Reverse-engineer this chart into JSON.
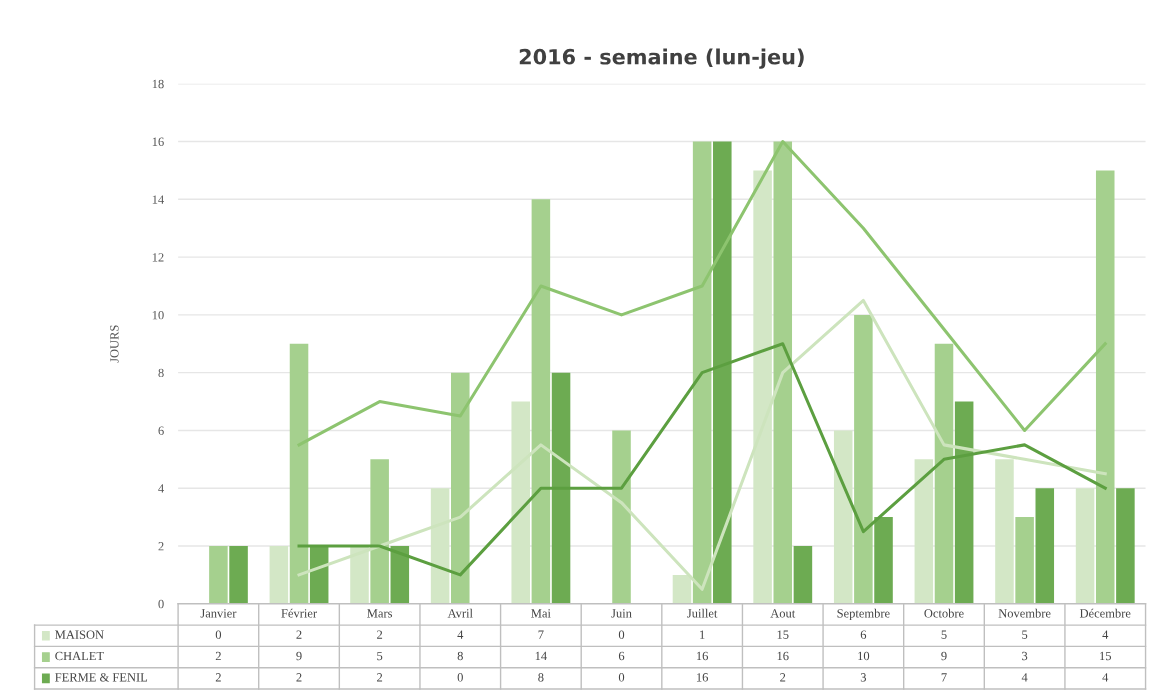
{
  "chart_data": {
    "type": "bar",
    "title": "2016 - semaine (lun-jeu)",
    "ylabel": "JOURS",
    "categories": [
      "Janvier",
      "Février",
      "Mars",
      "Avril",
      "Mai",
      "Juin",
      "Juillet",
      "Aout",
      "Septembre",
      "Octobre",
      "Novembre",
      "Décembre"
    ],
    "series": [
      {
        "name": "MAISON",
        "color": "#d3e7c6",
        "values": [
          0,
          2,
          2,
          4,
          7,
          0,
          1,
          15,
          6,
          5,
          5,
          4
        ],
        "value_labels": [
          "0",
          "2",
          "2",
          "4",
          "7",
          "0",
          "1",
          "15",
          "6",
          "5",
          "5",
          "4"
        ]
      },
      {
        "name": "CHALET",
        "color": "#a5d08e",
        "values": [
          2,
          9,
          5,
          8,
          14,
          6,
          16,
          16,
          10,
          9,
          3,
          15
        ],
        "value_labels": [
          "2",
          "9",
          "5",
          "8",
          "14",
          "6",
          "16",
          "16",
          "10",
          "9",
          "3",
          "15"
        ]
      },
      {
        "name": "FERME & FENIL",
        "color": "#6dab52",
        "values": [
          2,
          2,
          2,
          0,
          8,
          0,
          16,
          2,
          3,
          7,
          4,
          4
        ],
        "value_labels": [
          "2",
          "2",
          "2",
          "0",
          "8",
          "0",
          "16",
          "2",
          "3",
          "7",
          "4",
          "4"
        ]
      },
      {
        "type": "line",
        "color": "#cde4bd",
        "values": [
          null,
          1,
          2,
          3,
          5.5,
          3.5,
          0.5,
          8,
          10.5,
          5.5,
          5,
          4.5
        ]
      },
      {
        "type": "line",
        "color": "#8dc46f",
        "values": [
          null,
          5.5,
          7,
          6.5,
          11,
          10,
          11,
          16,
          13,
          9.5,
          6,
          9
        ]
      },
      {
        "type": "line",
        "color": "#5c9f40",
        "values": [
          null,
          2,
          2,
          1,
          4,
          4,
          8,
          9,
          2.5,
          5,
          5.5,
          4
        ]
      }
    ],
    "ylim": [
      0,
      18
    ],
    "yticks": [
      0,
      2,
      4,
      6,
      8,
      10,
      12,
      14,
      16,
      18
    ],
    "grid": "y",
    "legend": "bottom"
  }
}
